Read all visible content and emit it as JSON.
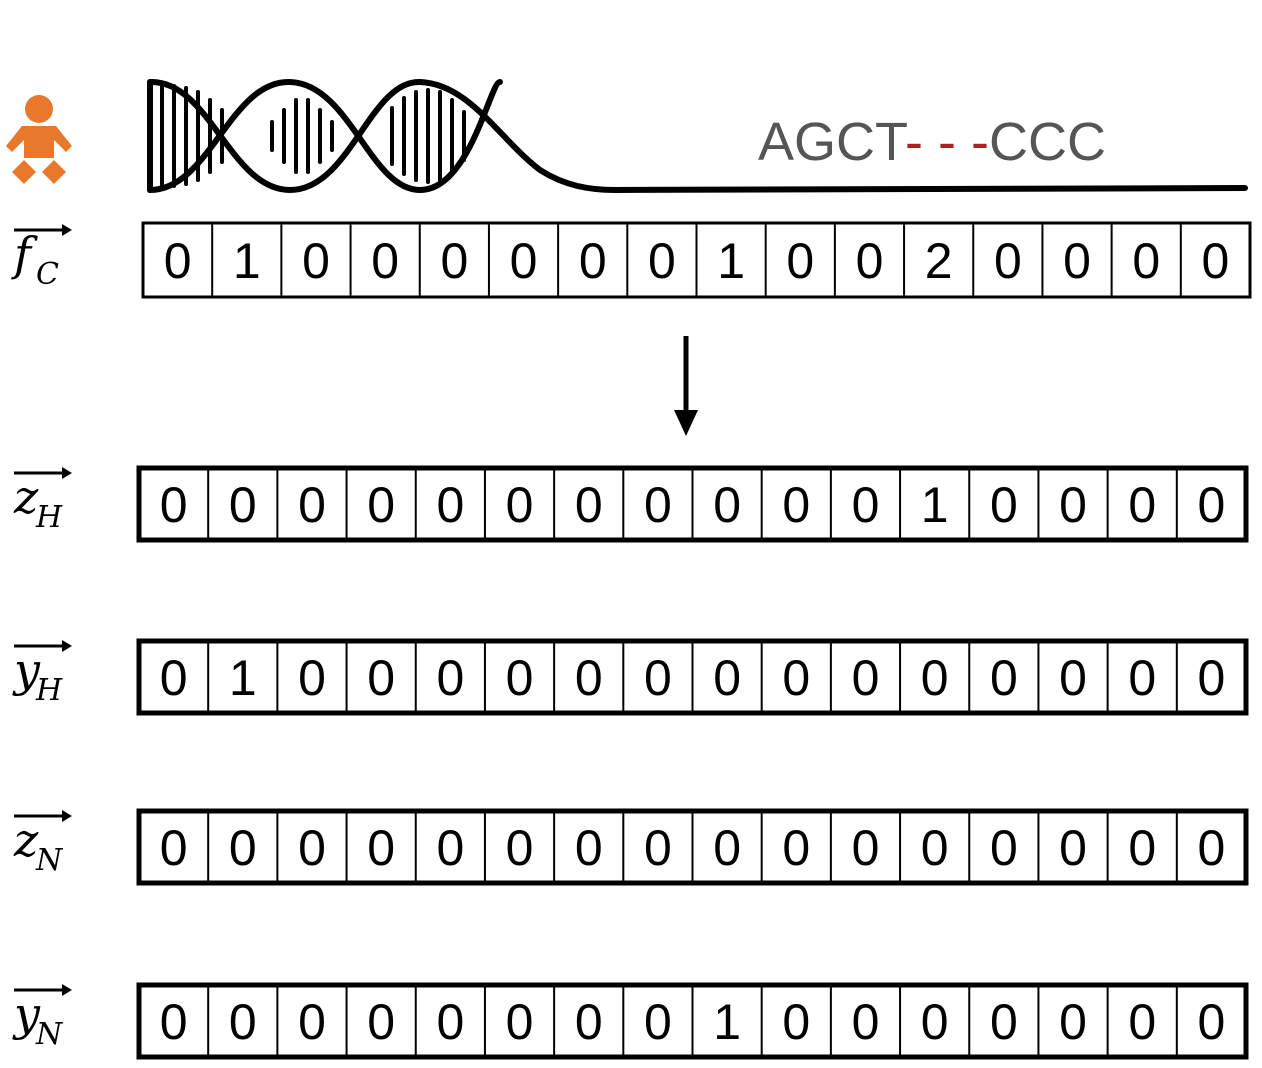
{
  "colors": {
    "baby_icon": "#e8782c",
    "sequence_text": "#555555",
    "sequence_gap": "#b01e1e",
    "stroke": "#000000"
  },
  "icons": {
    "person": "baby-icon",
    "dna": "dna-helix-icon",
    "arrow": "down-arrow-icon"
  },
  "sequence": {
    "start": "AGCT",
    "gap": "- - -",
    "end": "CCC"
  },
  "vectors": [
    {
      "id": "fc",
      "symbol": "f",
      "subscript": "C",
      "values": [
        "0",
        "1",
        "0",
        "0",
        "0",
        "0",
        "0",
        "0",
        "1",
        "0",
        "0",
        "2",
        "0",
        "0",
        "0",
        "0"
      ]
    },
    {
      "id": "zh",
      "symbol": "z",
      "subscript": "H",
      "values": [
        "0",
        "0",
        "0",
        "0",
        "0",
        "0",
        "0",
        "0",
        "0",
        "0",
        "0",
        "1",
        "0",
        "0",
        "0",
        "0"
      ]
    },
    {
      "id": "yh",
      "symbol": "y",
      "subscript": "H",
      "values": [
        "0",
        "1",
        "0",
        "0",
        "0",
        "0",
        "0",
        "0",
        "0",
        "0",
        "0",
        "0",
        "0",
        "0",
        "0",
        "0"
      ]
    },
    {
      "id": "zn",
      "symbol": "z",
      "subscript": "N",
      "values": [
        "0",
        "0",
        "0",
        "0",
        "0",
        "0",
        "0",
        "0",
        "0",
        "0",
        "0",
        "0",
        "0",
        "0",
        "0",
        "0"
      ]
    },
    {
      "id": "yn",
      "symbol": "y",
      "subscript": "N",
      "values": [
        "0",
        "0",
        "0",
        "0",
        "0",
        "0",
        "0",
        "0",
        "1",
        "0",
        "0",
        "0",
        "0",
        "0",
        "0",
        "0"
      ]
    }
  ]
}
